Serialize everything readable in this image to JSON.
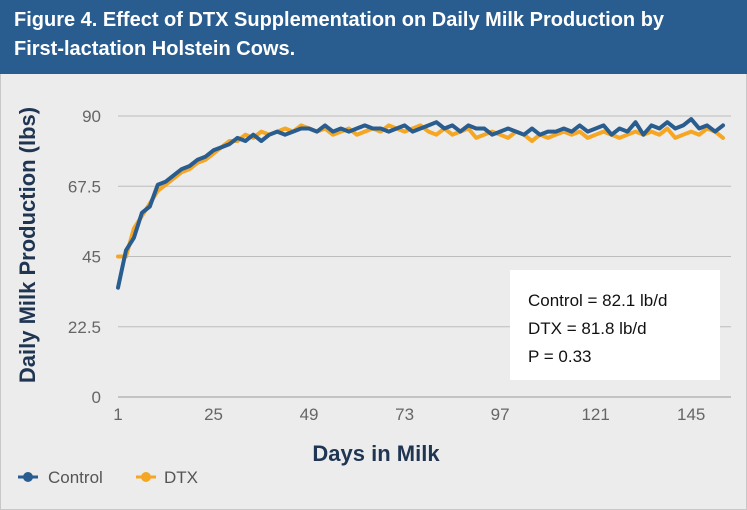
{
  "header": {
    "title_line1": "Figure 4. Effect of DTX Supplementation on Daily Milk Production by",
    "title_line2": "First-lactation Holstein Cows."
  },
  "colors": {
    "control": "#2a5d8f",
    "dtx": "#f5a623",
    "header_bg": "#2a5d8f",
    "grid": "#bdbdbd"
  },
  "chart_data": {
    "type": "line",
    "title": "Figure 4. Effect of DTX Supplementation on Daily Milk Production by First-lactation Holstein Cows.",
    "xlabel": "Days in Milk",
    "ylabel": "Daily Milk Production (lbs)",
    "xlim": [
      1,
      155
    ],
    "ylim": [
      0,
      90
    ],
    "xticks": [
      1,
      25,
      49,
      73,
      97,
      121,
      145
    ],
    "yticks": [
      0,
      22.5,
      45,
      67.5,
      90
    ],
    "ytick_labels": [
      "0",
      "22.5",
      "45",
      "67.5",
      "90"
    ],
    "grid": true,
    "legend_position": "bottom-left",
    "annotations": [
      "Control = 82.1 lb/d",
      "DTX = 81.8 lb/d",
      "P = 0.33"
    ],
    "series": [
      {
        "name": "Control",
        "x": [
          1,
          3,
          5,
          7,
          9,
          11,
          13,
          15,
          17,
          19,
          21,
          23,
          25,
          27,
          29,
          31,
          33,
          35,
          37,
          39,
          41,
          43,
          45,
          47,
          49,
          51,
          53,
          55,
          57,
          59,
          61,
          63,
          65,
          67,
          69,
          71,
          73,
          75,
          77,
          79,
          81,
          83,
          85,
          87,
          89,
          91,
          93,
          95,
          97,
          99,
          101,
          103,
          105,
          107,
          109,
          111,
          113,
          115,
          117,
          119,
          121,
          123,
          125,
          127,
          129,
          131,
          133,
          135,
          137,
          139,
          141,
          143,
          145,
          147,
          149,
          151,
          153
        ],
        "values": [
          35,
          47,
          51,
          59,
          61,
          68,
          69,
          71,
          73,
          74,
          76,
          77,
          79,
          80,
          81,
          83,
          82,
          84,
          82,
          84,
          85,
          84,
          85,
          86,
          86,
          85,
          87,
          85,
          86,
          85,
          86,
          87,
          86,
          86,
          85,
          86,
          87,
          85,
          86,
          87,
          88,
          86,
          87,
          85,
          87,
          86,
          86,
          84,
          85,
          86,
          85,
          84,
          86,
          84,
          85,
          85,
          86,
          85,
          87,
          85,
          86,
          87,
          84,
          86,
          85,
          88,
          84,
          87,
          86,
          88,
          86,
          87,
          89,
          86,
          87,
          85,
          87
        ]
      },
      {
        "name": "DTX",
        "x": [
          1,
          3,
          5,
          7,
          9,
          11,
          13,
          15,
          17,
          19,
          21,
          23,
          25,
          27,
          29,
          31,
          33,
          35,
          37,
          39,
          41,
          43,
          45,
          47,
          49,
          51,
          53,
          55,
          57,
          59,
          61,
          63,
          65,
          67,
          69,
          71,
          73,
          75,
          77,
          79,
          81,
          83,
          85,
          87,
          89,
          91,
          93,
          95,
          97,
          99,
          101,
          103,
          105,
          107,
          109,
          111,
          113,
          115,
          117,
          119,
          121,
          123,
          125,
          127,
          129,
          131,
          133,
          135,
          137,
          139,
          141,
          143,
          145,
          147,
          149,
          151,
          153
        ],
        "values": [
          45,
          45,
          54,
          58,
          62,
          66,
          68,
          70,
          72,
          73,
          75,
          76,
          78,
          80,
          82,
          82,
          84,
          83,
          85,
          84,
          85,
          86,
          85,
          87,
          86,
          85,
          86,
          84,
          85,
          86,
          84,
          85,
          86,
          85,
          87,
          86,
          85,
          86,
          87,
          85,
          84,
          86,
          84,
          85,
          86,
          83,
          84,
          85,
          84,
          83,
          85,
          84,
          82,
          84,
          83,
          84,
          85,
          84,
          85,
          83,
          84,
          85,
          84,
          83,
          84,
          85,
          84,
          85,
          84,
          86,
          83,
          84,
          85,
          84,
          86,
          85,
          83
        ]
      }
    ]
  }
}
